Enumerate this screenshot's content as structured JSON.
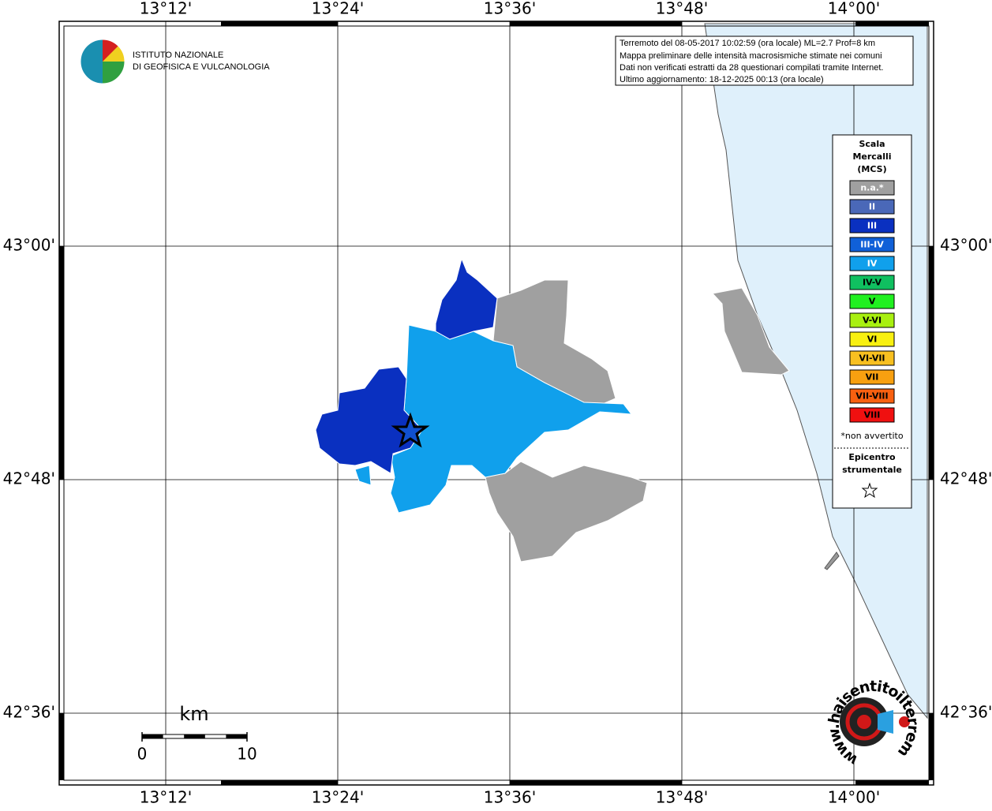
{
  "map": {
    "lon_ticks": [
      {
        "value": 13.2,
        "label": "13°12'"
      },
      {
        "value": 13.4,
        "label": "13°24'"
      },
      {
        "value": 13.6,
        "label": "13°36'"
      },
      {
        "value": 13.8,
        "label": "13°48'"
      },
      {
        "value": 14.0,
        "label": "14°00'"
      }
    ],
    "lat_ticks": [
      {
        "value": 43.0,
        "label": "43°00'"
      },
      {
        "value": 42.8,
        "label": "42°48'"
      },
      {
        "value": 42.6,
        "label": "42°36'"
      }
    ]
  },
  "logo": {
    "line1": "ISTITUTO NAZIONALE",
    "line2": "DI GEOFISICA E VULCANOLOGIA"
  },
  "info": {
    "lines": [
      "Terremoto del 08-05-2017 10:02:59 (ora locale) ML=2.7 Prof=8 km",
      "Mappa preliminare delle intensità macrosismiche stimate nei comuni",
      "Dati non verificati estratti da 28 questionari compilati tramite Internet.",
      "Ultimo aggiornamento: 18-12-2025 00:13 (ora locale)"
    ]
  },
  "legend": {
    "title": [
      "Scala",
      "Mercalli",
      "(MCS)"
    ],
    "items": [
      {
        "label": "n.a.*",
        "color": "#a0a0a0"
      },
      {
        "label": "II",
        "color": "#4a68b8"
      },
      {
        "label": "III",
        "color": "#0a30c0"
      },
      {
        "label": "III-IV",
        "color": "#1060d8"
      },
      {
        "label": "IV",
        "color": "#10a0ec"
      },
      {
        "label": "IV-V",
        "color": "#10c060"
      },
      {
        "label": "V",
        "color": "#20f020"
      },
      {
        "label": "V-VI",
        "color": "#a8f010"
      },
      {
        "label": "VI",
        "color": "#f8f010"
      },
      {
        "label": "VI-VII",
        "color": "#f8c020"
      },
      {
        "label": "VII",
        "color": "#f8a010"
      },
      {
        "label": "VII-VIII",
        "color": "#f86010"
      },
      {
        "label": "VIII",
        "color": "#f01010"
      }
    ],
    "note": "*non avvertito",
    "epicenter": [
      "Epicentro",
      "strumentale"
    ]
  },
  "scale_bar": {
    "unit": "km",
    "ticks": [
      0,
      10
    ]
  },
  "site_logo": {
    "text": "www.haisentitoilterremoto.it"
  }
}
